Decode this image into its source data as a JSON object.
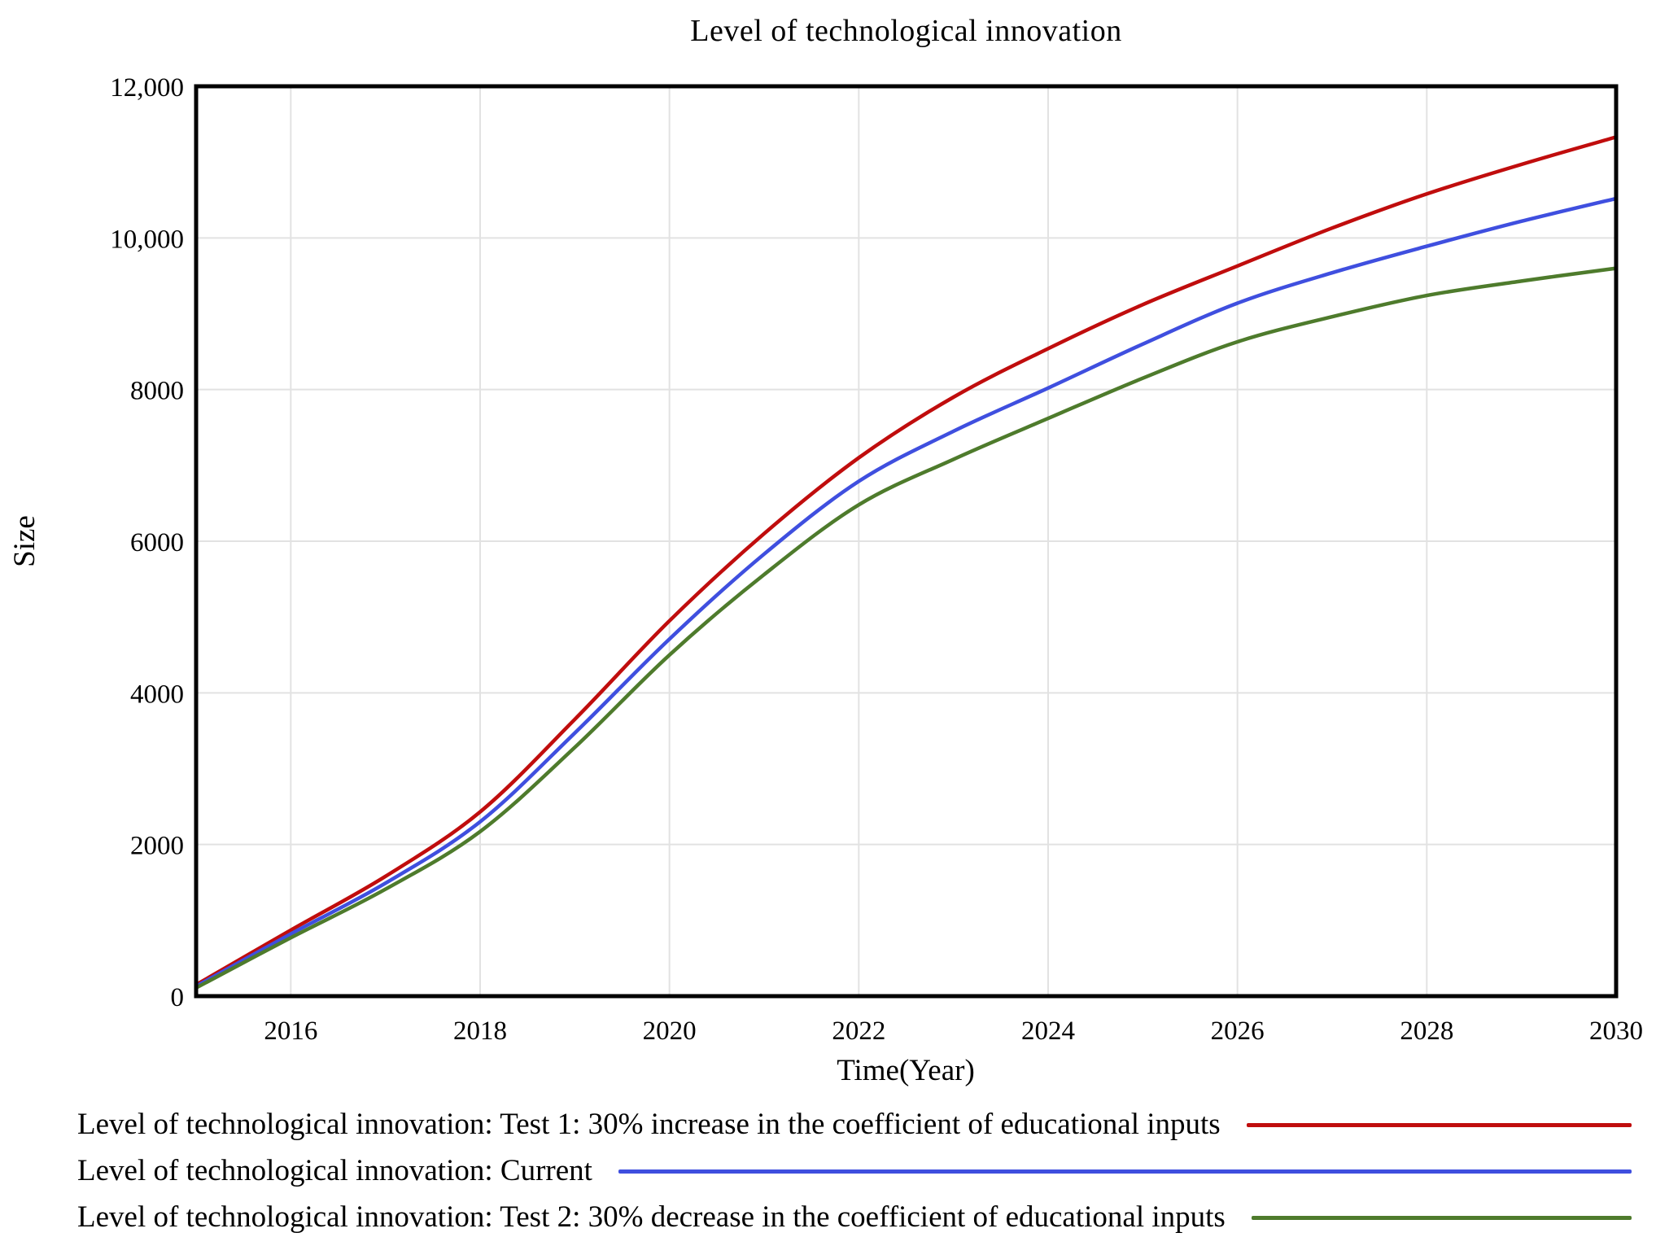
{
  "chart": {
    "title": "Level of technological innovation",
    "xlabel": "Time(Year)",
    "ylabel": "Size",
    "frame_color": "#000000",
    "grid_color": "#e2e2e2",
    "background": "#ffffff"
  },
  "chart_data": {
    "type": "line",
    "title": "Level of technological innovation",
    "xlabel": "Time(Year)",
    "ylabel": "Size",
    "xlim": [
      2015,
      2030
    ],
    "ylim": [
      0,
      12000
    ],
    "grid": true,
    "legend_position": "bottom-left",
    "x_ticks": [
      2016,
      2018,
      2020,
      2022,
      2024,
      2026,
      2028,
      2030
    ],
    "x_tick_labels": [
      "2016",
      "2018",
      "2020",
      "2022",
      "2024",
      "2026",
      "2028",
      "2030"
    ],
    "y_ticks": [
      0,
      2000,
      4000,
      6000,
      8000,
      10000,
      12000
    ],
    "y_tick_labels": [
      "0",
      "2000",
      "4000",
      "6000",
      "8000",
      "10,000",
      "12,000"
    ],
    "x": [
      2015,
      2016,
      2017,
      2018,
      2019,
      2020,
      2021,
      2022,
      2023,
      2024,
      2025,
      2026,
      2027,
      2028,
      2029,
      2030
    ],
    "series": [
      {
        "name": "Level of technological innovation: Test 1: 30% increase in the coefficient of educational inputs",
        "color": "#c00d0d",
        "values": [
          150,
          870,
          1580,
          2430,
          3650,
          4950,
          6100,
          7100,
          7900,
          8540,
          9120,
          9630,
          10130,
          10580,
          10970,
          11330
        ]
      },
      {
        "name": "Level of technological innovation: Current",
        "color": "#3f4fdf",
        "values": [
          130,
          820,
          1490,
          2300,
          3470,
          4710,
          5830,
          6790,
          7450,
          8020,
          8600,
          9140,
          9540,
          9890,
          10220,
          10520
        ]
      },
      {
        "name": "Level of technological innovation: Test 2: 30% decrease in the coefficient of educational inputs",
        "color": "#4e7b2c",
        "values": [
          110,
          770,
          1410,
          2170,
          3280,
          4500,
          5560,
          6480,
          7080,
          7620,
          8150,
          8630,
          8960,
          9240,
          9430,
          9600
        ]
      }
    ]
  }
}
